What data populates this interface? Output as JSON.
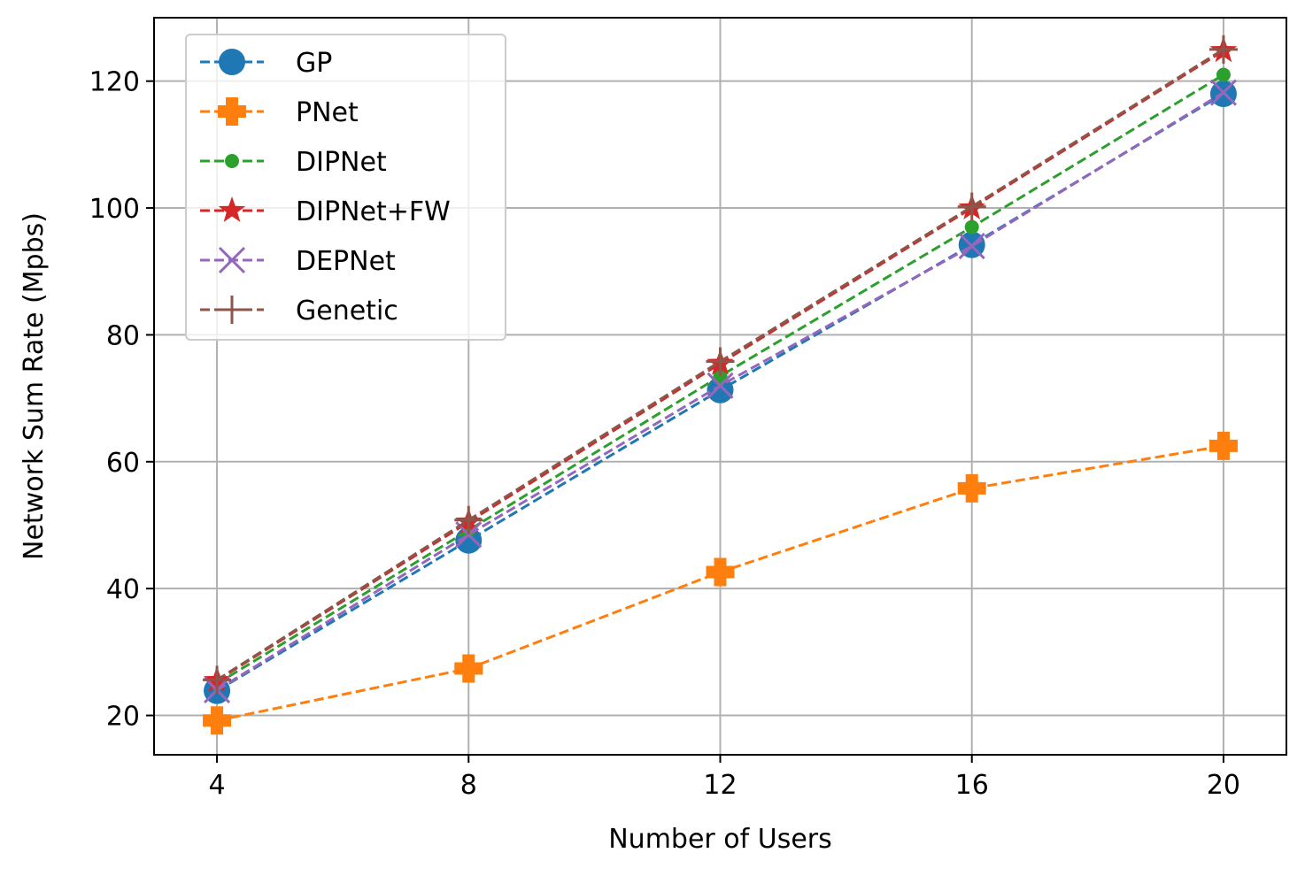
{
  "chart_data": {
    "type": "line",
    "xlabel": "Number of Users",
    "ylabel": "Network Sum Rate (Mpbs)",
    "x": [
      4,
      8,
      12,
      16,
      20
    ],
    "xlim": [
      3,
      21
    ],
    "ylim": [
      13.8,
      130
    ],
    "xticks": [
      4,
      8,
      12,
      16,
      20
    ],
    "yticks": [
      20,
      40,
      60,
      80,
      100,
      120
    ],
    "grid": true,
    "legend_position": "top-left",
    "series": [
      {
        "name": "GP",
        "color": "#1f77b4",
        "marker": "circle",
        "values": [
          23.9,
          47.6,
          71.3,
          94.2,
          118.0
        ]
      },
      {
        "name": "PNet",
        "color": "#ff7f0e",
        "marker": "plus-filled",
        "values": [
          19.2,
          27.4,
          42.6,
          55.8,
          62.5
        ]
      },
      {
        "name": "DIPNet",
        "color": "#2ca02c",
        "marker": "dot",
        "values": [
          25.0,
          49.2,
          73.5,
          97.0,
          121.0
        ]
      },
      {
        "name": "DIPNet+FW",
        "color": "#d62728",
        "marker": "star",
        "values": [
          25.5,
          50.5,
          75.5,
          100.0,
          124.8
        ]
      },
      {
        "name": "DEPNet",
        "color": "#9467bd",
        "marker": "x",
        "values": [
          24.0,
          48.5,
          72.0,
          94.0,
          118.2
        ]
      },
      {
        "name": "Genetic",
        "color": "#8c564b",
        "marker": "plus-thin",
        "values": [
          25.6,
          50.8,
          75.8,
          100.2,
          125.0
        ]
      }
    ]
  }
}
